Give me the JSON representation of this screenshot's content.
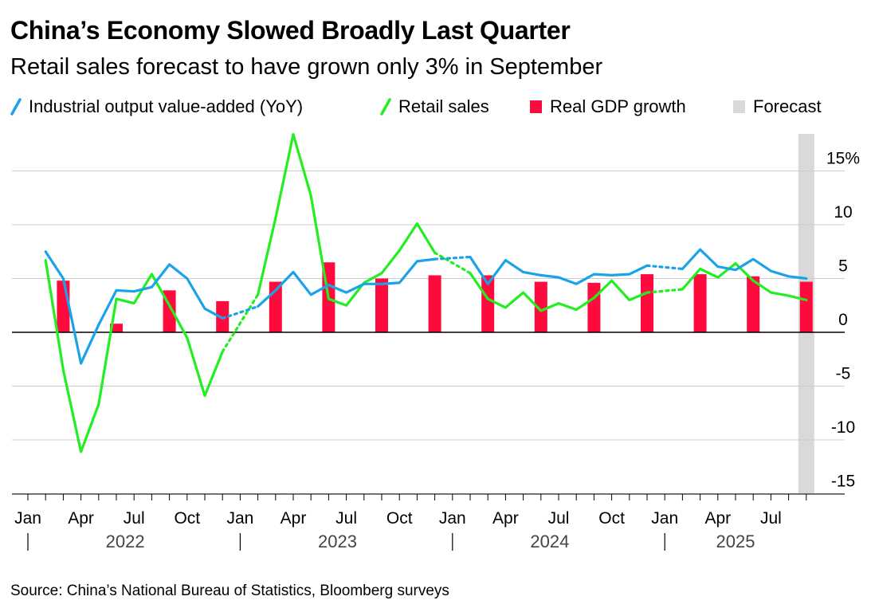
{
  "header": {
    "title": "China’s Economy Slowed Broadly Last Quarter",
    "subtitle": "Retail sales forecast to have grown only 3% in September"
  },
  "legend": [
    {
      "label": "Industrial output value-added (YoY)",
      "icon": "line-icon",
      "color": "#1aa3e8"
    },
    {
      "label": "Retail sales",
      "icon": "line-icon",
      "color": "#22ee22"
    },
    {
      "label": "Real GDP growth",
      "icon": "square-icon",
      "color": "#ff0a3c"
    },
    {
      "label": "Forecast",
      "icon": "square-icon",
      "color": "#d9d9d9"
    }
  ],
  "source": "Source: China’s National Bureau of Statistics, Bloomberg surveys",
  "chart_data": {
    "type": "line",
    "title": "China’s Economy Slowed Broadly Last Quarter",
    "subtitle": "Retail sales forecast to have grown only 3% in September",
    "x_axis": {
      "ticks": [
        {
          "label": "Jan",
          "month": "2022-01"
        },
        {
          "label": "Apr",
          "month": "2022-04"
        },
        {
          "label": "Jul",
          "month": "2022-07"
        },
        {
          "label": "Oct",
          "month": "2022-10"
        },
        {
          "label": "Jan",
          "month": "2023-01"
        },
        {
          "label": "Apr",
          "month": "2023-04"
        },
        {
          "label": "Jul",
          "month": "2023-07"
        },
        {
          "label": "Oct",
          "month": "2023-10"
        },
        {
          "label": "Jan",
          "month": "2024-01"
        },
        {
          "label": "Apr",
          "month": "2024-04"
        },
        {
          "label": "Jul",
          "month": "2024-07"
        },
        {
          "label": "Oct",
          "month": "2024-10"
        },
        {
          "label": "Jan",
          "month": "2025-01"
        },
        {
          "label": "Apr",
          "month": "2025-04"
        },
        {
          "label": "Jul",
          "month": "2025-07"
        }
      ],
      "years": [
        {
          "label": "2022",
          "start": "2022-01",
          "end": "2022-12"
        },
        {
          "label": "2023",
          "start": "2023-01",
          "end": "2023-12"
        },
        {
          "label": "2024",
          "start": "2024-01",
          "end": "2024-12"
        },
        {
          "label": "2025",
          "start": "2025-01",
          "end": "2025-09"
        }
      ],
      "range": [
        "2022-01",
        "2025-09"
      ]
    },
    "y_axis": {
      "ylim": [
        -15.5,
        18.5
      ],
      "ticks": [
        -15,
        -10,
        -5,
        0,
        5,
        10,
        15
      ],
      "tick_labels": [
        "-15",
        "-10",
        "-5",
        "0",
        "5",
        "10",
        "15%"
      ],
      "position": "right",
      "grid": true
    },
    "forecast_period": "2025-09",
    "series": [
      {
        "name": "Industrial output value-added (YoY)",
        "type": "line",
        "color": "#1aa3e8",
        "segments": [
          {
            "style": "solid",
            "points": [
              [
                "2022-02",
                7.5
              ],
              [
                "2022-03",
                5.0
              ],
              [
                "2022-04",
                -2.9
              ],
              [
                "2022-05",
                0.7
              ],
              [
                "2022-06",
                3.9
              ],
              [
                "2022-07",
                3.8
              ],
              [
                "2022-08",
                4.2
              ],
              [
                "2022-09",
                6.3
              ],
              [
                "2022-10",
                5.0
              ],
              [
                "2022-11",
                2.2
              ],
              [
                "2022-12",
                1.3
              ]
            ]
          },
          {
            "style": "dotted",
            "points": [
              [
                "2022-12",
                1.3
              ],
              [
                "2023-02",
                2.4
              ]
            ]
          },
          {
            "style": "solid",
            "points": [
              [
                "2023-02",
                2.4
              ],
              [
                "2023-03",
                3.9
              ],
              [
                "2023-04",
                5.6
              ],
              [
                "2023-05",
                3.5
              ],
              [
                "2023-06",
                4.4
              ],
              [
                "2023-07",
                3.7
              ],
              [
                "2023-08",
                4.5
              ],
              [
                "2023-09",
                4.5
              ],
              [
                "2023-10",
                4.6
              ],
              [
                "2023-11",
                6.6
              ],
              [
                "2023-12",
                6.8
              ]
            ]
          },
          {
            "style": "dotted",
            "points": [
              [
                "2023-12",
                6.8
              ],
              [
                "2024-02",
                7.0
              ]
            ]
          },
          {
            "style": "solid",
            "points": [
              [
                "2024-02",
                7.0
              ],
              [
                "2024-03",
                4.5
              ],
              [
                "2024-04",
                6.7
              ],
              [
                "2024-05",
                5.6
              ],
              [
                "2024-06",
                5.3
              ],
              [
                "2024-07",
                5.1
              ],
              [
                "2024-08",
                4.5
              ],
              [
                "2024-09",
                5.4
              ],
              [
                "2024-10",
                5.3
              ],
              [
                "2024-11",
                5.4
              ],
              [
                "2024-12",
                6.2
              ]
            ]
          },
          {
            "style": "dotted",
            "points": [
              [
                "2024-12",
                6.2
              ],
              [
                "2025-02",
                5.9
              ]
            ]
          },
          {
            "style": "solid",
            "points": [
              [
                "2025-02",
                5.9
              ],
              [
                "2025-03",
                7.7
              ],
              [
                "2025-04",
                6.1
              ],
              [
                "2025-05",
                5.8
              ],
              [
                "2025-06",
                6.8
              ],
              [
                "2025-07",
                5.7
              ],
              [
                "2025-08",
                5.2
              ],
              [
                "2025-09",
                5.0
              ]
            ]
          }
        ]
      },
      {
        "name": "Retail sales",
        "type": "line",
        "color": "#22ee22",
        "segments": [
          {
            "style": "solid",
            "points": [
              [
                "2022-02",
                6.7
              ],
              [
                "2022-03",
                -3.5
              ],
              [
                "2022-04",
                -11.1
              ],
              [
                "2022-05",
                -6.7
              ],
              [
                "2022-06",
                3.1
              ],
              [
                "2022-07",
                2.7
              ],
              [
                "2022-08",
                5.4
              ],
              [
                "2022-09",
                2.5
              ],
              [
                "2022-10",
                -0.5
              ],
              [
                "2022-11",
                -5.9
              ],
              [
                "2022-12",
                -1.8
              ]
            ]
          },
          {
            "style": "dotted",
            "points": [
              [
                "2022-12",
                -1.8
              ],
              [
                "2023-02",
                3.5
              ]
            ]
          },
          {
            "style": "solid",
            "points": [
              [
                "2023-02",
                3.5
              ],
              [
                "2023-03",
                10.6
              ],
              [
                "2023-04",
                18.4
              ],
              [
                "2023-05",
                12.7
              ],
              [
                "2023-06",
                3.1
              ],
              [
                "2023-07",
                2.5
              ],
              [
                "2023-08",
                4.6
              ],
              [
                "2023-09",
                5.5
              ],
              [
                "2023-10",
                7.6
              ],
              [
                "2023-11",
                10.1
              ],
              [
                "2023-12",
                7.4
              ]
            ]
          },
          {
            "style": "dotted",
            "points": [
              [
                "2023-12",
                7.4
              ],
              [
                "2024-02",
                5.5
              ]
            ]
          },
          {
            "style": "solid",
            "points": [
              [
                "2024-02",
                5.5
              ],
              [
                "2024-03",
                3.1
              ],
              [
                "2024-04",
                2.3
              ],
              [
                "2024-05",
                3.7
              ],
              [
                "2024-06",
                2.0
              ],
              [
                "2024-07",
                2.7
              ],
              [
                "2024-08",
                2.1
              ],
              [
                "2024-09",
                3.2
              ],
              [
                "2024-10",
                4.8
              ],
              [
                "2024-11",
                3.0
              ],
              [
                "2024-12",
                3.7
              ]
            ]
          },
          {
            "style": "dotted",
            "points": [
              [
                "2024-12",
                3.7
              ],
              [
                "2025-02",
                4.0
              ]
            ]
          },
          {
            "style": "solid",
            "points": [
              [
                "2025-02",
                4.0
              ],
              [
                "2025-03",
                5.9
              ],
              [
                "2025-04",
                5.1
              ],
              [
                "2025-05",
                6.4
              ],
              [
                "2025-06",
                4.8
              ],
              [
                "2025-07",
                3.7
              ],
              [
                "2025-08",
                3.4
              ],
              [
                "2025-09",
                3.0
              ]
            ]
          }
        ]
      },
      {
        "name": "Real GDP growth",
        "type": "bar",
        "color": "#ff0a3c",
        "points": [
          [
            "2022-03",
            4.8
          ],
          [
            "2022-06",
            0.8
          ],
          [
            "2022-09",
            3.9
          ],
          [
            "2022-12",
            2.9
          ],
          [
            "2023-03",
            4.7
          ],
          [
            "2023-06",
            6.5
          ],
          [
            "2023-09",
            5.0
          ],
          [
            "2023-12",
            5.3
          ],
          [
            "2024-03",
            5.3
          ],
          [
            "2024-06",
            4.7
          ],
          [
            "2024-09",
            4.6
          ],
          [
            "2024-12",
            5.4
          ],
          [
            "2025-03",
            5.4
          ],
          [
            "2025-06",
            5.2
          ],
          [
            "2025-09",
            4.7
          ]
        ]
      }
    ]
  }
}
